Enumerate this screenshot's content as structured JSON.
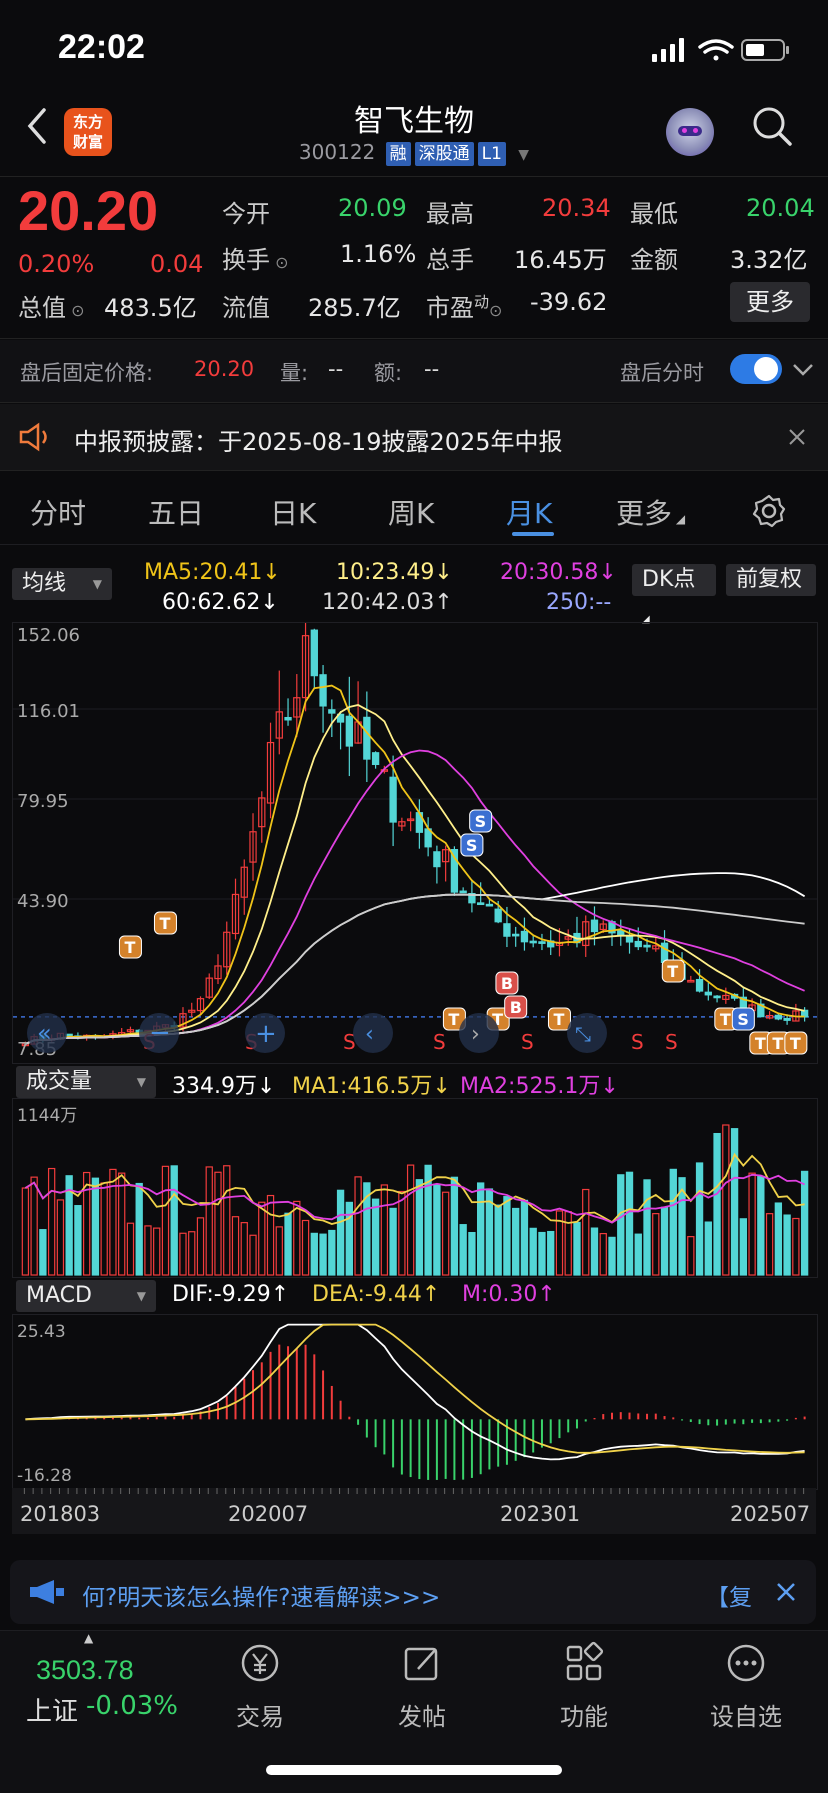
{
  "status_bar": {
    "time": "22:02"
  },
  "header": {
    "logo_text_1": "东方",
    "logo_text_2": "财富",
    "name": "智飞生物",
    "code": "300122",
    "tags": [
      "融",
      "深股通",
      "L1"
    ]
  },
  "quote": {
    "price": "20.20",
    "change_pct": "0.20%",
    "change": "0.04",
    "open_label": "今开",
    "open": "20.09",
    "high_label": "最高",
    "high": "20.34",
    "low_label": "最低",
    "low": "20.04",
    "turnover_label": "换手",
    "turnover": "1.16%",
    "volume_label": "总手",
    "volume": "16.45万",
    "amount_label": "金额",
    "amount": "3.32亿",
    "mktcap_label": "总值",
    "mktcap": "483.5亿",
    "float_label": "流值",
    "float": "285.7亿",
    "pe_label": "市盈",
    "pe_sup": "动",
    "pe": "-39.62",
    "more_label": "更多"
  },
  "after_hours": {
    "price_label": "盘后固定价格:",
    "price": "20.20",
    "vol_label": "量:",
    "vol": "--",
    "amt_label": "额:",
    "amt": "--",
    "intraday_label": "盘后分时"
  },
  "notice": {
    "text": "中报预披露：于2025-08-19披露2025年中报"
  },
  "tabs": [
    "分时",
    "五日",
    "日K",
    "周K",
    "月K",
    "更多"
  ],
  "active_tab": "月K",
  "ma": {
    "selector": "均线",
    "ma5": "MA5:20.41",
    "ma10": "10:23.49",
    "ma20": "20:30.58",
    "ma60": "60:62.62",
    "ma120": "120:42.03",
    "ma250": "250:--",
    "dk_label": "DK点",
    "adjust_label": "前复权"
  },
  "main_chart": {
    "y_labels": [
      "152.06",
      "116.01",
      "79.95",
      "43.90",
      "7.85"
    ],
    "ylim": [
      7.85,
      152.06
    ],
    "markers": [
      "T",
      "S",
      "B"
    ],
    "s_labels": [
      "S",
      "S",
      "S",
      "S",
      "S",
      "S",
      "S"
    ]
  },
  "volume": {
    "selector": "成交量",
    "value": "334.9万",
    "ma1": "MA1:416.5万",
    "ma2": "MA2:525.1万",
    "max_label": "1144万"
  },
  "macd": {
    "selector": "MACD",
    "dif": "DIF:-9.29",
    "dea": "DEA:-9.44",
    "m": "M:0.30",
    "y_top": "25.43",
    "y_bottom": "-16.28"
  },
  "x_axis": [
    "201803",
    "202007",
    "202301",
    "202507"
  ],
  "banner": {
    "text": "何?明天该怎么操作?速看解读>>>",
    "tail": "【复"
  },
  "bottom_nav": {
    "index_value": "3503.78",
    "index_name": "上证",
    "index_change": "-0.03%",
    "items": [
      "交易",
      "发帖",
      "功能",
      "设自选"
    ]
  },
  "colors": {
    "up": "#f23c3c",
    "down": "#53d6d6",
    "ma5": "#f0c419",
    "ma10": "#ffef8a",
    "ma20": "#e040e0",
    "ma60": "#ffffff",
    "accent": "#4a90e2"
  },
  "chart_data": {
    "type": "candlestick",
    "x": [
      "201803",
      "202007",
      "202301",
      "202507"
    ],
    "ylim": [
      7.85,
      152.06
    ],
    "close_approx": [
      12,
      14,
      13,
      15,
      17,
      25,
      60,
      110,
      145,
      120,
      100,
      85,
      70,
      55,
      48,
      45,
      50,
      46,
      40,
      30,
      25,
      21,
      20.2
    ]
  }
}
